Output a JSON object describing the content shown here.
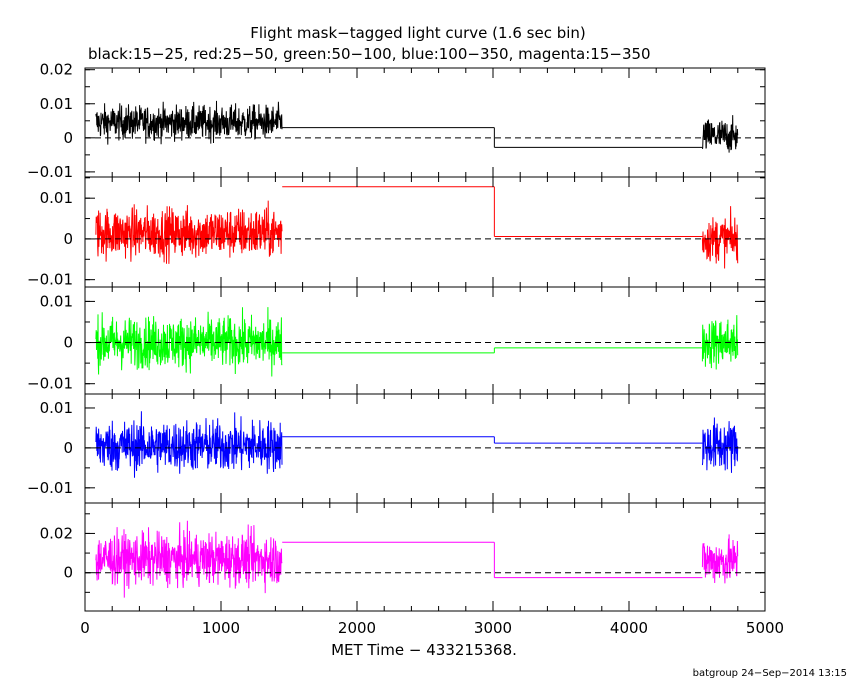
{
  "chart_data": {
    "type": "line",
    "title": "Flight mask−tagged light curve (1.6 sec bin)",
    "subtitle": "black:15−25, red:25−50, green:50−100, blue:100−350, magenta:15−350",
    "xlabel": "MET Time − 433215368.",
    "xlim": [
      0,
      5000
    ],
    "xticks": [
      0,
      1000,
      2000,
      3000,
      4000,
      5000
    ],
    "xtick_labels": [
      "0",
      "1000",
      "2000",
      "3000",
      "4000",
      "5000"
    ],
    "grid": false,
    "footer": "batgroup 24−Sep−2014 13:15",
    "panels": [
      {
        "band": "15−25",
        "color": "#000000",
        "ylim": [
          -0.0115,
          0.0205
        ],
        "yticks": [
          -0.01,
          0,
          0.01,
          0.02
        ],
        "ytick_labels": [
          "−0.01",
          "0",
          "0.01",
          "0.02"
        ],
        "segments": [
          {
            "x_start": 80,
            "x_end": 1450,
            "kind": "noise",
            "mean": 0.0045,
            "amplitude": 0.0085
          },
          {
            "x_start": 1450,
            "x_end": 3010,
            "kind": "flat",
            "value": 0.003
          },
          {
            "x_start": 3010,
            "x_end": 4540,
            "kind": "flat",
            "value": -0.0028
          },
          {
            "x_start": 4540,
            "x_end": 4800,
            "kind": "noise",
            "mean": 0.0005,
            "amplitude": 0.0085
          }
        ]
      },
      {
        "band": "25−50",
        "color": "#ff0000",
        "ylim": [
          -0.0118,
          0.0152
        ],
        "yticks": [
          -0.01,
          0,
          0.01
        ],
        "ytick_labels": [
          "−0.01",
          "0",
          "0.01"
        ],
        "segments": [
          {
            "x_start": 80,
            "x_end": 1450,
            "kind": "noise",
            "mean": 0.0015,
            "amplitude": 0.0105
          },
          {
            "x_start": 1450,
            "x_end": 3010,
            "kind": "flat",
            "value": 0.0128
          },
          {
            "x_start": 3010,
            "x_end": 4540,
            "kind": "flat",
            "value": 0.0006
          },
          {
            "x_start": 4540,
            "x_end": 4800,
            "kind": "noise",
            "mean": 0.0,
            "amplitude": 0.0095
          }
        ]
      },
      {
        "band": "50−100",
        "color": "#00ff00",
        "ylim": [
          -0.0125,
          0.0135
        ],
        "yticks": [
          -0.01,
          0,
          0.01
        ],
        "ytick_labels": [
          "−0.01",
          "0",
          "0.01"
        ],
        "segments": [
          {
            "x_start": 80,
            "x_end": 1450,
            "kind": "noise",
            "mean": 0.0,
            "amplitude": 0.0105
          },
          {
            "x_start": 1450,
            "x_end": 3010,
            "kind": "flat",
            "value": -0.0025
          },
          {
            "x_start": 3010,
            "x_end": 4540,
            "kind": "flat",
            "value": -0.0013
          },
          {
            "x_start": 4540,
            "x_end": 4800,
            "kind": "noise",
            "mean": 0.0,
            "amplitude": 0.0105
          }
        ]
      },
      {
        "band": "100−350",
        "color": "#0000ff",
        "ylim": [
          -0.0138,
          0.0135
        ],
        "yticks": [
          -0.01,
          0,
          0.01
        ],
        "ytick_labels": [
          "−0.01",
          "0",
          "0.01"
        ],
        "segments": [
          {
            "x_start": 80,
            "x_end": 1450,
            "kind": "noise",
            "mean": 0.0005,
            "amplitude": 0.011
          },
          {
            "x_start": 1450,
            "x_end": 3010,
            "kind": "flat",
            "value": 0.0028
          },
          {
            "x_start": 3010,
            "x_end": 4540,
            "kind": "flat",
            "value": 0.0012
          },
          {
            "x_start": 4540,
            "x_end": 4800,
            "kind": "noise",
            "mean": 0.0005,
            "amplitude": 0.011
          }
        ]
      },
      {
        "band": "15−350",
        "color": "#ff00ff",
        "ylim": [
          -0.0195,
          0.0355
        ],
        "yticks": [
          0,
          0.02
        ],
        "ytick_labels": [
          "0",
          "0.02"
        ],
        "segments": [
          {
            "x_start": 80,
            "x_end": 1450,
            "kind": "noise",
            "mean": 0.007,
            "amplitude": 0.0225
          },
          {
            "x_start": 1450,
            "x_end": 3010,
            "kind": "flat",
            "value": 0.0155
          },
          {
            "x_start": 3010,
            "x_end": 4540,
            "kind": "flat",
            "value": -0.0025
          },
          {
            "x_start": 4540,
            "x_end": 4800,
            "kind": "noise",
            "mean": 0.006,
            "amplitude": 0.02
          }
        ]
      }
    ]
  }
}
